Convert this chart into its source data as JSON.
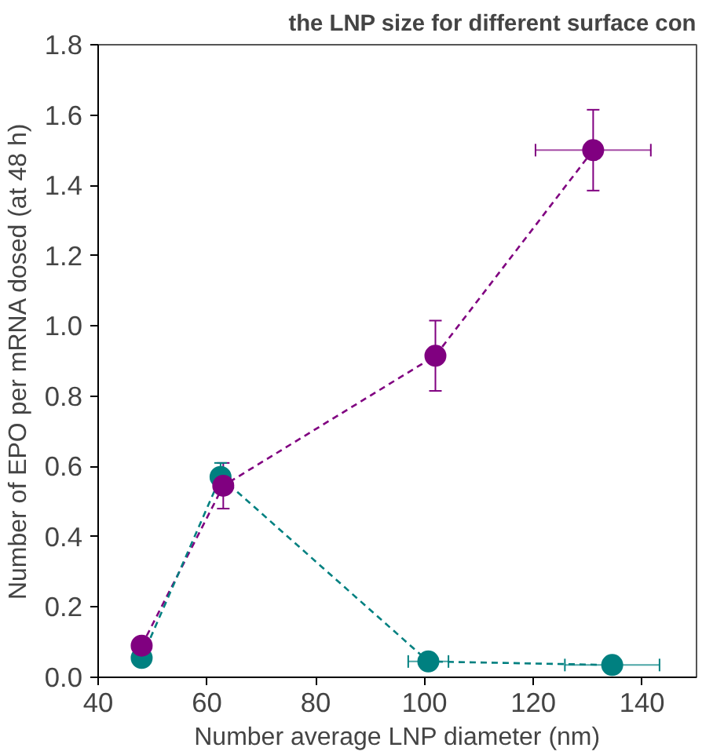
{
  "chart_data": {
    "type": "line",
    "title": "the LNP size for different surface con",
    "xlabel": "Number average LNP diameter (nm)",
    "ylabel": "Number of EPO per mRNA dosed (at 48 h)",
    "series": [
      {
        "color": "#800080",
        "x": [
          48,
          63,
          102,
          131
        ],
        "values": [
          0.09,
          0.545,
          0.915,
          1.5
        ],
        "errors": [
          null,
          0.065,
          0.1,
          0.115
        ],
        "xerrors": [
          null,
          null,
          null,
          10.6
        ]
      },
      {
        "color": "#008080",
        "x": [
          48,
          62.5,
          100.7,
          134.5
        ],
        "values": [
          0.055,
          0.57,
          0.045,
          0.035
        ],
        "errors": [
          null,
          0.04,
          null,
          null
        ],
        "xerrors": [
          null,
          null,
          3.7,
          8.7
        ]
      }
    ],
    "xlim": [
      40,
      150
    ],
    "xticks": [
      40,
      60,
      80,
      100,
      120,
      140
    ],
    "ylim": [
      0,
      1.8
    ],
    "yticks": [
      {
        "value": 0,
        "label": "0.0"
      },
      {
        "value": 0.2,
        "label": "0.2"
      },
      {
        "value": 0.4,
        "label": "0.4"
      },
      {
        "value": 0.6,
        "label": "0.6"
      },
      {
        "value": 0.8,
        "label": "0.8"
      },
      {
        "value": 1.0,
        "label": "1.0"
      },
      {
        "value": 1.2,
        "label": "1.2"
      },
      {
        "value": 1.4,
        "label": "1.4"
      },
      {
        "value": 1.6,
        "label": "1.6"
      },
      {
        "value": 1.8,
        "label": "1.8"
      }
    ],
    "grid": false,
    "marker": "circle",
    "line_style": "dashed"
  }
}
